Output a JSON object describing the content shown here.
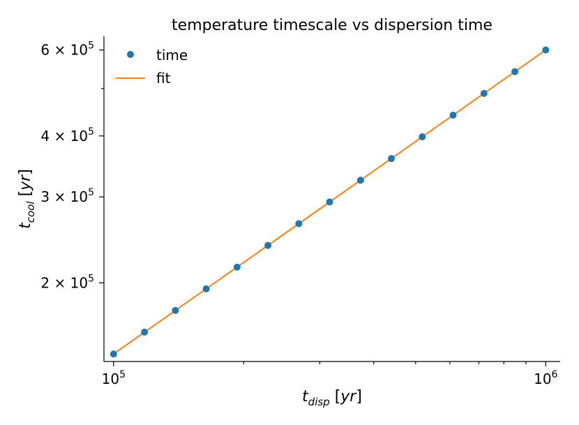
{
  "chart_data": {
    "type": "scatter",
    "title": "temperature timescale vs dispersion time",
    "xlabel": "t_disp [yr]",
    "ylabel": "t_cool [yr]",
    "xscale": "log",
    "yscale": "log",
    "xlim": [
      95000,
      1080000
    ],
    "ylim": [
      138000,
      640000
    ],
    "legend_position": "top-left",
    "grid": false,
    "x_ticks_major": [
      {
        "value": 100000,
        "mantissa": "10",
        "exponent": "5"
      },
      {
        "value": 1000000,
        "mantissa": "10",
        "exponent": "6"
      }
    ],
    "x_ticks_minor": [
      90000,
      200000,
      300000,
      400000,
      500000,
      600000,
      700000,
      800000,
      900000
    ],
    "y_ticks_major": [
      {
        "value": 200000,
        "mantissa": "2 × 10",
        "exponent": "5"
      },
      {
        "value": 300000,
        "mantissa": "3 × 10",
        "exponent": "5"
      },
      {
        "value": 400000,
        "mantissa": "4 × 10",
        "exponent": "5"
      },
      {
        "value": 600000,
        "mantissa": "6 × 10",
        "exponent": "5"
      }
    ],
    "y_ticks_minor": [
      500000
    ],
    "series": [
      {
        "name": "time",
        "kind": "scatter",
        "color": "#1f77b4",
        "x": [
          100000,
          117900,
          139000,
          163800,
          193100,
          227600,
          268300,
          316200,
          372800,
          439400,
          518000,
          610500,
          719700,
          848300,
          1000000
        ],
        "y": [
          143000,
          158500,
          175600,
          194400,
          215400,
          238600,
          264400,
          292900,
          324500,
          359500,
          398300,
          441200,
          488800,
          541500,
          600000
        ]
      },
      {
        "name": "fit",
        "kind": "line",
        "color": "#ff7f0e",
        "x": [
          100000,
          1000000
        ],
        "y": [
          143000,
          600000
        ]
      }
    ]
  }
}
